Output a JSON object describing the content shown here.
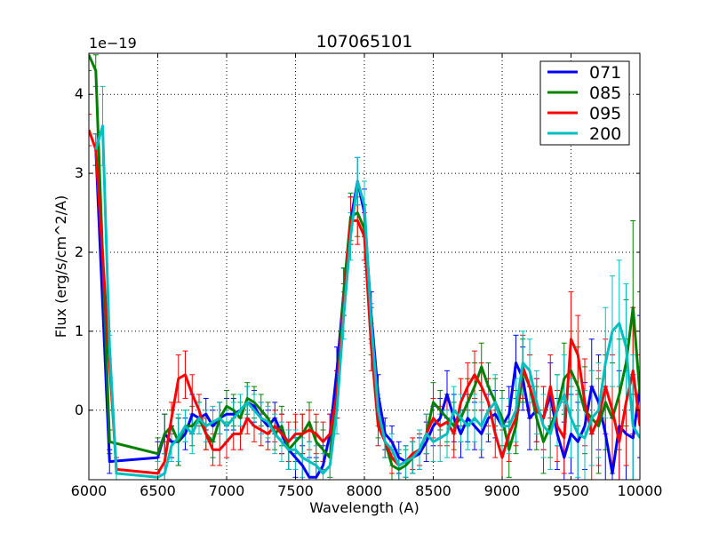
{
  "chart_data": {
    "type": "line",
    "title": "107065101",
    "xlabel": "Wavelength (A)",
    "ylabel": "Flux (erg/s/cm^2/A)",
    "offset_text": "1e−19",
    "xlim": [
      6000,
      10000
    ],
    "ylim": [
      -0.88,
      4.52
    ],
    "y_scale": "1e-19",
    "xticks": [
      6000,
      6500,
      7000,
      7500,
      8000,
      8500,
      9000,
      9500,
      10000
    ],
    "yticks": [
      0,
      1,
      2,
      3,
      4
    ],
    "grid": true,
    "legend_position": "top-right",
    "series": [
      {
        "name": "071",
        "color": "#0000ff",
        "x": [
          6050,
          6150,
          6500,
          6550,
          6600,
          6650,
          6700,
          6750,
          6800,
          6850,
          6900,
          6950,
          7000,
          7050,
          7100,
          7150,
          7200,
          7250,
          7300,
          7350,
          7400,
          7450,
          7500,
          7550,
          7600,
          7650,
          7700,
          7750,
          7800,
          7850,
          7900,
          7950,
          8000,
          8050,
          8100,
          8150,
          8200,
          8250,
          8300,
          8350,
          8400,
          8450,
          8500,
          8550,
          8600,
          8650,
          8700,
          8750,
          8800,
          8850,
          8900,
          8950,
          9000,
          9050,
          9100,
          9150,
          9200,
          9250,
          9300,
          9350,
          9400,
          9450,
          9500,
          9550,
          9600,
          9650,
          9700,
          9750,
          9800,
          9850,
          9900,
          9950,
          10000
        ],
        "y": [
          3.3,
          -0.65,
          -0.6,
          -0.3,
          -0.4,
          -0.4,
          -0.3,
          -0.05,
          -0.1,
          -0.05,
          -0.2,
          -0.1,
          -0.05,
          -0.05,
          0.0,
          0.1,
          0.05,
          -0.1,
          -0.2,
          -0.1,
          -0.3,
          -0.5,
          -0.6,
          -0.7,
          -0.85,
          -0.85,
          -0.7,
          -0.3,
          0.5,
          1.5,
          2.4,
          2.9,
          2.5,
          1.2,
          0.2,
          -0.3,
          -0.4,
          -0.6,
          -0.65,
          -0.6,
          -0.55,
          -0.4,
          -0.2,
          -0.1,
          0.2,
          -0.1,
          -0.3,
          -0.1,
          -0.2,
          -0.3,
          -0.1,
          -0.05,
          -0.2,
          -0.05,
          0.6,
          0.4,
          -0.1,
          0.0,
          -0.1,
          0.2,
          -0.3,
          -0.6,
          -0.3,
          -0.4,
          -0.2,
          0.3,
          0.1,
          -0.3,
          -0.8,
          -0.2,
          -0.3,
          -0.35,
          0.3
        ],
        "err": [
          0.2,
          0.15,
          0.2,
          0.25,
          0.2,
          0.3,
          0.2,
          0.25,
          0.2,
          0.2,
          0.2,
          0.2,
          0.2,
          0.2,
          0.2,
          0.2,
          0.2,
          0.2,
          0.2,
          0.2,
          0.25,
          0.25,
          0.25,
          0.25,
          0.25,
          0.25,
          0.25,
          0.25,
          0.3,
          0.3,
          0.3,
          0.3,
          0.3,
          0.3,
          0.25,
          0.2,
          0.2,
          0.2,
          0.2,
          0.2,
          0.2,
          0.25,
          0.25,
          0.25,
          0.3,
          0.3,
          0.3,
          0.3,
          0.3,
          0.3,
          0.3,
          0.3,
          0.35,
          0.35,
          0.35,
          0.4,
          0.4,
          0.4,
          0.4,
          0.4,
          0.45,
          0.45,
          0.5,
          0.5,
          0.55,
          0.6,
          0.6,
          0.6,
          0.7,
          0.7,
          0.8,
          0.8,
          0.9
        ]
      },
      {
        "name": "085",
        "color": "#008000",
        "x": [
          6000,
          6050,
          6150,
          6500,
          6550,
          6600,
          6650,
          6700,
          6750,
          6800,
          6850,
          6900,
          6950,
          7000,
          7050,
          7100,
          7150,
          7200,
          7250,
          7300,
          7350,
          7400,
          7450,
          7500,
          7550,
          7600,
          7650,
          7700,
          7750,
          7800,
          7850,
          7900,
          7950,
          8000,
          8050,
          8100,
          8150,
          8200,
          8250,
          8300,
          8350,
          8400,
          8450,
          8500,
          8550,
          8600,
          8650,
          8700,
          8750,
          8800,
          8850,
          8900,
          8950,
          9000,
          9050,
          9100,
          9150,
          9200,
          9250,
          9300,
          9350,
          9400,
          9450,
          9500,
          9550,
          9600,
          9650,
          9700,
          9750,
          9800,
          9850,
          9900,
          9950,
          10000
        ],
        "y": [
          4.5,
          4.3,
          -0.4,
          -0.55,
          -0.3,
          -0.2,
          -0.4,
          -0.2,
          -0.2,
          -0.1,
          -0.3,
          -0.4,
          -0.1,
          0.05,
          0.0,
          -0.1,
          0.15,
          0.1,
          0.0,
          -0.1,
          -0.3,
          -0.2,
          -0.5,
          -0.4,
          -0.3,
          -0.15,
          -0.4,
          -0.5,
          -0.6,
          0.2,
          1.5,
          2.45,
          2.5,
          2.3,
          1.0,
          -0.1,
          -0.4,
          -0.7,
          -0.75,
          -0.7,
          -0.6,
          -0.5,
          -0.3,
          0.1,
          0.0,
          -0.1,
          -0.2,
          -0.1,
          0.1,
          0.3,
          0.55,
          0.3,
          0.1,
          -0.1,
          -0.5,
          -0.2,
          0.5,
          0.3,
          -0.1,
          -0.4,
          -0.2,
          0.0,
          0.4,
          0.5,
          0.3,
          0.0,
          -0.1,
          -0.2,
          0.1,
          -0.1,
          0.2,
          0.6,
          1.3,
          0.2
        ],
        "err": [
          0.2,
          0.2,
          0.15,
          0.2,
          0.25,
          0.2,
          0.3,
          0.2,
          0.25,
          0.2,
          0.2,
          0.2,
          0.2,
          0.2,
          0.2,
          0.2,
          0.2,
          0.2,
          0.2,
          0.2,
          0.2,
          0.25,
          0.25,
          0.25,
          0.25,
          0.25,
          0.25,
          0.25,
          0.25,
          0.3,
          0.3,
          0.3,
          0.3,
          0.3,
          0.3,
          0.25,
          0.2,
          0.2,
          0.2,
          0.2,
          0.2,
          0.2,
          0.25,
          0.25,
          0.25,
          0.3,
          0.3,
          0.3,
          0.3,
          0.3,
          0.3,
          0.3,
          0.3,
          0.35,
          0.35,
          0.35,
          0.4,
          0.4,
          0.4,
          0.4,
          0.4,
          0.45,
          0.45,
          0.5,
          0.5,
          0.55,
          0.6,
          0.6,
          0.6,
          0.7,
          0.7,
          0.8,
          1.1,
          1.3
        ]
      },
      {
        "name": "095",
        "color": "#ff0000",
        "x": [
          6000,
          6050,
          6200,
          6500,
          6550,
          6600,
          6650,
          6700,
          6750,
          6800,
          6850,
          6900,
          6950,
          7000,
          7050,
          7100,
          7150,
          7200,
          7250,
          7300,
          7350,
          7400,
          7450,
          7500,
          7550,
          7600,
          7650,
          7700,
          7750,
          7800,
          7850,
          7900,
          7950,
          8000,
          8050,
          8100,
          8150,
          8200,
          8250,
          8300,
          8350,
          8400,
          8450,
          8500,
          8550,
          8600,
          8650,
          8700,
          8750,
          8800,
          8850,
          8900,
          8950,
          9000,
          9050,
          9100,
          9150,
          9200,
          9250,
          9300,
          9350,
          9400,
          9450,
          9500,
          9550,
          9600,
          9650,
          9700,
          9750,
          9800,
          9850,
          9900,
          9950,
          10000
        ],
        "y": [
          3.55,
          3.3,
          -0.75,
          -0.8,
          -0.65,
          -0.1,
          0.4,
          0.45,
          0.2,
          0.0,
          -0.3,
          -0.5,
          -0.5,
          -0.4,
          -0.3,
          -0.3,
          -0.1,
          -0.2,
          -0.25,
          -0.3,
          -0.2,
          -0.3,
          -0.4,
          -0.3,
          -0.3,
          -0.25,
          -0.3,
          -0.4,
          -0.3,
          0.2,
          1.3,
          2.4,
          2.4,
          2.2,
          0.8,
          -0.2,
          -0.4,
          -0.6,
          -0.7,
          -0.65,
          -0.55,
          -0.5,
          -0.3,
          -0.1,
          -0.2,
          -0.15,
          -0.3,
          0.1,
          0.3,
          0.45,
          0.3,
          0.1,
          -0.3,
          -0.6,
          -0.3,
          -0.1,
          0.55,
          0.3,
          0.0,
          -0.1,
          0.3,
          -0.2,
          -0.35,
          0.9,
          0.7,
          0.1,
          -0.3,
          -0.1,
          0.3,
          0.0,
          -0.4,
          0.1,
          0.5,
          -0.2
        ],
        "err": [
          0.2,
          0.2,
          0.15,
          0.2,
          0.25,
          0.2,
          0.3,
          0.3,
          0.25,
          0.2,
          0.2,
          0.2,
          0.2,
          0.2,
          0.2,
          0.2,
          0.2,
          0.2,
          0.2,
          0.2,
          0.2,
          0.25,
          0.25,
          0.25,
          0.25,
          0.25,
          0.25,
          0.25,
          0.25,
          0.3,
          0.3,
          0.3,
          0.3,
          0.3,
          0.3,
          0.25,
          0.2,
          0.2,
          0.2,
          0.2,
          0.2,
          0.2,
          0.25,
          0.25,
          0.25,
          0.3,
          0.3,
          0.3,
          0.3,
          0.3,
          0.3,
          0.3,
          0.3,
          0.35,
          0.35,
          0.35,
          0.4,
          0.4,
          0.4,
          0.4,
          0.4,
          0.45,
          0.45,
          0.6,
          0.5,
          0.55,
          0.6,
          0.6,
          0.6,
          0.7,
          0.7,
          0.8,
          0.8,
          0.9
        ]
      },
      {
        "name": "200",
        "color": "#00bfbf",
        "x": [
          6050,
          6100,
          6150,
          6200,
          6500,
          6550,
          6600,
          6650,
          6700,
          6750,
          6800,
          6850,
          6900,
          6950,
          7000,
          7050,
          7100,
          7150,
          7200,
          7250,
          7300,
          7350,
          7400,
          7450,
          7500,
          7550,
          7600,
          7650,
          7700,
          7750,
          7800,
          7850,
          7900,
          7950,
          8000,
          8050,
          8100,
          8150,
          8200,
          8250,
          8300,
          8350,
          8400,
          8450,
          8500,
          8550,
          8600,
          8650,
          8700,
          8750,
          8800,
          8850,
          8900,
          8950,
          9000,
          9050,
          9100,
          9150,
          9200,
          9250,
          9300,
          9350,
          9400,
          9450,
          9500,
          9550,
          9600,
          9650,
          9700,
          9750,
          9800,
          9850,
          9900,
          9950,
          10000
        ],
        "y": [
          3.3,
          3.6,
          0.8,
          -0.8,
          -0.85,
          -0.8,
          -0.45,
          -0.35,
          -0.2,
          -0.3,
          -0.1,
          -0.2,
          -0.15,
          -0.1,
          -0.2,
          -0.1,
          0.0,
          0.1,
          0.0,
          -0.1,
          -0.15,
          -0.3,
          -0.4,
          -0.5,
          -0.5,
          -0.6,
          -0.65,
          -0.7,
          -0.8,
          -0.7,
          0.0,
          1.2,
          2.2,
          2.9,
          2.6,
          1.1,
          0.0,
          -0.4,
          -0.5,
          -0.7,
          -0.65,
          -0.6,
          -0.5,
          -0.3,
          -0.4,
          -0.35,
          -0.3,
          0.0,
          -0.1,
          -0.2,
          -0.1,
          -0.2,
          0.0,
          0.1,
          -0.2,
          -0.2,
          0.0,
          0.6,
          0.5,
          0.1,
          -0.2,
          -0.3,
          0.0,
          0.2,
          -0.1,
          -0.3,
          -0.35,
          -0.1,
          0.0,
          0.6,
          1.0,
          1.1,
          0.8,
          -0.2,
          -0.35
        ],
        "err": [
          0.2,
          0.5,
          0.15,
          0.15,
          0.2,
          0.25,
          0.2,
          0.3,
          0.2,
          0.25,
          0.2,
          0.2,
          0.2,
          0.2,
          0.2,
          0.2,
          0.2,
          0.2,
          0.2,
          0.2,
          0.2,
          0.25,
          0.25,
          0.25,
          0.25,
          0.25,
          0.25,
          0.25,
          0.25,
          0.3,
          0.3,
          0.3,
          0.3,
          0.3,
          0.3,
          0.25,
          0.2,
          0.2,
          0.2,
          0.2,
          0.2,
          0.2,
          0.25,
          0.25,
          0.25,
          0.3,
          0.3,
          0.3,
          0.3,
          0.3,
          0.3,
          0.3,
          0.3,
          0.35,
          0.35,
          0.35,
          0.4,
          0.4,
          0.4,
          0.4,
          0.4,
          0.45,
          0.45,
          0.5,
          0.5,
          0.55,
          0.6,
          0.6,
          0.6,
          0.7,
          0.7,
          0.8,
          0.8,
          0.9,
          0.9
        ]
      }
    ]
  }
}
